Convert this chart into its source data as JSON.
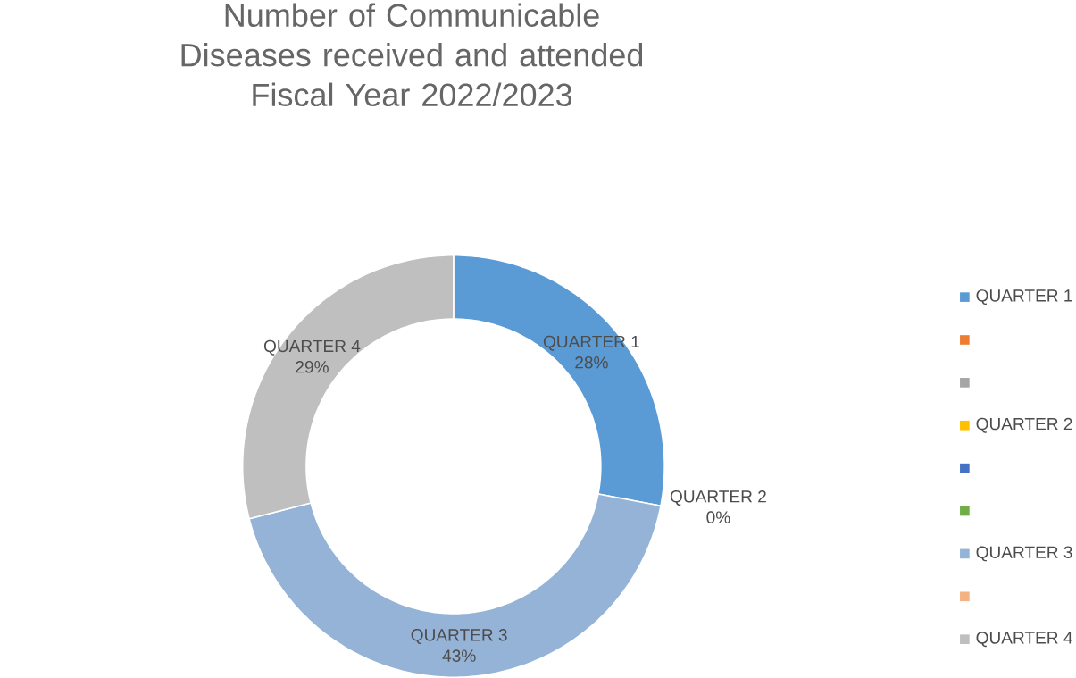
{
  "chart_data": {
    "type": "donut",
    "title": "Number of Communicable Diseases received and attended",
    "subtitle": "Fiscal Year 2022/2023",
    "categories": [
      "QUARTER 1",
      null,
      null,
      "QUARTER 2",
      null,
      null,
      "QUARTER 3",
      null,
      "QUARTER 4"
    ],
    "values": [
      28,
      0,
      0,
      0,
      0,
      0,
      43,
      0,
      29
    ],
    "colors": [
      "#5b9bd5",
      "#ed7d31",
      "#a5a5a5",
      "#ffc000",
      "#4472c4",
      "#70ad47",
      "#95b3d7",
      "#f4b183",
      "#bfbfbf"
    ],
    "value_labels": [
      "28%",
      null,
      null,
      "0%",
      null,
      null,
      "43%",
      null,
      "29%"
    ],
    "legend": "right"
  }
}
